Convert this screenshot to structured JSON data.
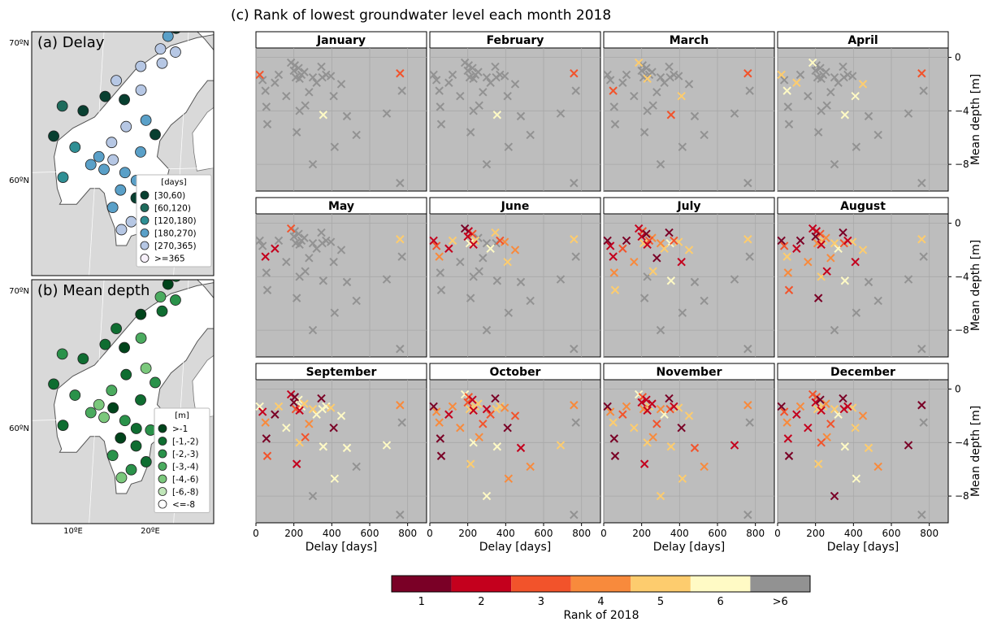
{
  "figure": {
    "title": "(c) Rank of lowest groundwater level each month 2018"
  },
  "maps": [
    {
      "title": "(a) Delay",
      "lat_labels": [
        "70ºN",
        "60ºN"
      ],
      "legend_title": "[days]",
      "legend_items": [
        {
          "label": "[30,60)",
          "color": "#083f30"
        },
        {
          "label": "[60,120)",
          "color": "#1e6b5c"
        },
        {
          "label": "[120,180)",
          "color": "#2f8f94"
        },
        {
          "label": "[180,270)",
          "color": "#5aa0c8"
        },
        {
          "label": "[270,365)",
          "color": "#b6c7e4"
        },
        {
          "label": ">=365",
          "color": "#f7f0fa"
        }
      ],
      "stations": [
        {
          "lat": 69.1,
          "lon": 18.5,
          "cls": 1
        },
        {
          "lat": 68.6,
          "lon": 17.6,
          "cls": 4
        },
        {
          "lat": 67.8,
          "lon": 16.8,
          "cls": 5
        },
        {
          "lat": 67.6,
          "lon": 18.6,
          "cls": 5
        },
        {
          "lat": 66.9,
          "lon": 17.1,
          "cls": 5
        },
        {
          "lat": 66.7,
          "lon": 14.6,
          "cls": 5
        },
        {
          "lat": 65.8,
          "lon": 11.8,
          "cls": 5
        },
        {
          "lat": 65.2,
          "lon": 14.8,
          "cls": 5
        },
        {
          "lat": 64.8,
          "lon": 10.6,
          "cls": 1
        },
        {
          "lat": 64.6,
          "lon": 12.9,
          "cls": 1
        },
        {
          "lat": 64.2,
          "lon": 5.6,
          "cls": 2
        },
        {
          "lat": 63.9,
          "lon": 8.1,
          "cls": 1
        },
        {
          "lat": 63.3,
          "lon": 15.6,
          "cls": 4
        },
        {
          "lat": 62.9,
          "lon": 13.3,
          "cls": 5
        },
        {
          "lat": 62.4,
          "lon": 16.8,
          "cls": 1
        },
        {
          "lat": 62.3,
          "lon": 4.8,
          "cls": 1
        },
        {
          "lat": 61.9,
          "lon": 11.7,
          "cls": 5
        },
        {
          "lat": 61.6,
          "lon": 7.4,
          "cls": 3
        },
        {
          "lat": 61.3,
          "lon": 15.2,
          "cls": 4
        },
        {
          "lat": 61.0,
          "lon": 10.3,
          "cls": 4
        },
        {
          "lat": 60.8,
          "lon": 12.0,
          "cls": 5
        },
        {
          "lat": 60.5,
          "lon": 9.4,
          "cls": 4
        },
        {
          "lat": 60.2,
          "lon": 11.0,
          "cls": 4
        },
        {
          "lat": 60.0,
          "lon": 13.5,
          "cls": 4
        },
        {
          "lat": 59.7,
          "lon": 6.2,
          "cls": 3
        },
        {
          "lat": 59.5,
          "lon": 14.9,
          "cls": 4
        },
        {
          "lat": 59.4,
          "lon": 16.6,
          "cls": 5
        },
        {
          "lat": 59.3,
          "lon": 18.1,
          "cls": 5
        },
        {
          "lat": 58.9,
          "lon": 13.1,
          "cls": 4
        },
        {
          "lat": 58.4,
          "lon": 15.0,
          "cls": 1
        },
        {
          "lat": 57.8,
          "lon": 12.3,
          "cls": 4
        },
        {
          "lat": 57.4,
          "lon": 16.3,
          "cls": 5
        },
        {
          "lat": 56.9,
          "lon": 14.6,
          "cls": 5
        },
        {
          "lat": 56.4,
          "lon": 13.5,
          "cls": 5
        }
      ]
    },
    {
      "title": "(b) Mean depth",
      "lat_labels": [
        "70ºN",
        "60ºN"
      ],
      "lon_labels": [
        "10ºE",
        "20ºE"
      ],
      "legend_title": "[m]",
      "legend_items": [
        {
          "label": ">-1",
          "color": "#00441b"
        },
        {
          "label": "[-1,-2)",
          "color": "#0f6d31"
        },
        {
          "label": "[-2,-3)",
          "color": "#2a924a"
        },
        {
          "label": "[-3,-4)",
          "color": "#4bab5f"
        },
        {
          "label": "[-4,-6)",
          "color": "#7bc87c"
        },
        {
          "label": "[-6,-8)",
          "color": "#c0e6b9"
        },
        {
          "label": "<=-8",
          "color": "#ffffff"
        }
      ],
      "stations": [
        {
          "lat": 69.1,
          "lon": 18.5,
          "cls": 2
        },
        {
          "lat": 68.6,
          "lon": 17.6,
          "cls": 1
        },
        {
          "lat": 67.8,
          "lon": 16.8,
          "cls": 4
        },
        {
          "lat": 67.6,
          "lon": 18.6,
          "cls": 3
        },
        {
          "lat": 66.9,
          "lon": 17.1,
          "cls": 2
        },
        {
          "lat": 66.7,
          "lon": 14.6,
          "cls": 1
        },
        {
          "lat": 65.8,
          "lon": 11.8,
          "cls": 2
        },
        {
          "lat": 65.2,
          "lon": 14.8,
          "cls": 4
        },
        {
          "lat": 64.8,
          "lon": 10.6,
          "cls": 2
        },
        {
          "lat": 64.6,
          "lon": 12.9,
          "cls": 1
        },
        {
          "lat": 64.2,
          "lon": 5.6,
          "cls": 3
        },
        {
          "lat": 63.9,
          "lon": 8.1,
          "cls": 2
        },
        {
          "lat": 63.3,
          "lon": 15.6,
          "cls": 5
        },
        {
          "lat": 62.9,
          "lon": 13.3,
          "cls": 2
        },
        {
          "lat": 62.4,
          "lon": 16.8,
          "cls": 3
        },
        {
          "lat": 62.3,
          "lon": 4.8,
          "cls": 2
        },
        {
          "lat": 61.9,
          "lon": 11.7,
          "cls": 4
        },
        {
          "lat": 61.6,
          "lon": 7.4,
          "cls": 3
        },
        {
          "lat": 61.3,
          "lon": 15.2,
          "cls": 2
        },
        {
          "lat": 61.0,
          "lon": 10.3,
          "cls": 5
        },
        {
          "lat": 60.8,
          "lon": 12.0,
          "cls": 1
        },
        {
          "lat": 60.5,
          "lon": 9.4,
          "cls": 4
        },
        {
          "lat": 60.2,
          "lon": 11.0,
          "cls": 5
        },
        {
          "lat": 60.0,
          "lon": 13.5,
          "cls": 3
        },
        {
          "lat": 59.7,
          "lon": 6.2,
          "cls": 2
        },
        {
          "lat": 59.5,
          "lon": 14.9,
          "cls": 2
        },
        {
          "lat": 59.4,
          "lon": 16.6,
          "cls": 3
        },
        {
          "lat": 59.3,
          "lon": 18.1,
          "cls": 2
        },
        {
          "lat": 58.9,
          "lon": 13.1,
          "cls": 1
        },
        {
          "lat": 58.4,
          "lon": 15.0,
          "cls": 2
        },
        {
          "lat": 57.8,
          "lon": 12.3,
          "cls": 3
        },
        {
          "lat": 57.4,
          "lon": 16.3,
          "cls": 2
        },
        {
          "lat": 56.9,
          "lon": 14.6,
          "cls": 3
        },
        {
          "lat": 56.4,
          "lon": 13.5,
          "cls": 5
        }
      ]
    }
  ],
  "chart_data": {
    "type": "scatter",
    "title": "(c) Rank of lowest groundwater level each month 2018",
    "xlabel": "Delay [days]",
    "ylabel": "Mean depth [m]",
    "xlim": [
      0,
      900
    ],
    "ylim": [
      0,
      -10
    ],
    "xticks": [
      0,
      200,
      400,
      600,
      800
    ],
    "yticks": [
      0,
      -4,
      -8
    ],
    "ytick_labels": [
      "0",
      "−4",
      "−8"
    ],
    "grid": true,
    "months": [
      "January",
      "February",
      "March",
      "April",
      "May",
      "June",
      "July",
      "August",
      "September",
      "October",
      "November",
      "December"
    ],
    "stations": [
      {
        "delay": 20,
        "depth": -1.3
      },
      {
        "delay": 35,
        "depth": -1.7
      },
      {
        "delay": 50,
        "depth": -2.5
      },
      {
        "delay": 55,
        "depth": -3.7
      },
      {
        "delay": 60,
        "depth": -5.0
      },
      {
        "delay": 100,
        "depth": -1.9
      },
      {
        "delay": 120,
        "depth": -1.3
      },
      {
        "delay": 160,
        "depth": -2.9
      },
      {
        "delay": 185,
        "depth": -0.4
      },
      {
        "delay": 200,
        "depth": -1.0
      },
      {
        "delay": 205,
        "depth": -0.6
      },
      {
        "delay": 210,
        "depth": -1.5
      },
      {
        "delay": 225,
        "depth": -0.8
      },
      {
        "delay": 230,
        "depth": -1.6
      },
      {
        "delay": 240,
        "depth": -1.3
      },
      {
        "delay": 255,
        "depth": -1.1
      },
      {
        "delay": 260,
        "depth": -3.6
      },
      {
        "delay": 230,
        "depth": -4.0
      },
      {
        "delay": 215,
        "depth": -5.6
      },
      {
        "delay": 280,
        "depth": -2.6
      },
      {
        "delay": 300,
        "depth": -1.5
      },
      {
        "delay": 320,
        "depth": -1.9
      },
      {
        "delay": 345,
        "depth": -0.7
      },
      {
        "delay": 350,
        "depth": -1.5
      },
      {
        "delay": 370,
        "depth": -1.3
      },
      {
        "delay": 395,
        "depth": -1.4
      },
      {
        "delay": 410,
        "depth": -2.9
      },
      {
        "delay": 355,
        "depth": -4.3
      },
      {
        "delay": 300,
        "depth": -8.0
      },
      {
        "delay": 415,
        "depth": -6.7
      },
      {
        "delay": 450,
        "depth": -2.0
      },
      {
        "delay": 480,
        "depth": -4.4
      },
      {
        "delay": 530,
        "depth": -5.8
      },
      {
        "delay": 690,
        "depth": -4.2
      },
      {
        "delay": 760,
        "depth": -1.2
      },
      {
        "delay": 770,
        "depth": -2.5
      },
      {
        "delay": 760,
        "depth": -9.4
      }
    ],
    "ranks_by_month": [
      [
        3,
        7,
        7,
        7,
        7,
        7,
        7,
        7,
        7,
        7,
        7,
        7,
        7,
        7,
        7,
        7,
        7,
        7,
        7,
        7,
        7,
        7,
        7,
        7,
        7,
        7,
        7,
        6,
        7,
        7,
        7,
        7,
        7,
        7,
        3,
        7,
        7
      ],
      [
        7,
        7,
        7,
        7,
        7,
        7,
        7,
        7,
        7,
        7,
        7,
        7,
        7,
        7,
        7,
        7,
        7,
        7,
        7,
        7,
        7,
        7,
        7,
        7,
        7,
        7,
        7,
        6,
        7,
        7,
        7,
        7,
        7,
        7,
        3,
        7,
        7
      ],
      [
        7,
        7,
        3,
        7,
        7,
        7,
        7,
        7,
        5,
        7,
        7,
        7,
        7,
        5,
        7,
        7,
        7,
        7,
        7,
        7,
        7,
        7,
        7,
        7,
        7,
        7,
        5,
        3,
        7,
        7,
        7,
        7,
        7,
        7,
        3,
        7,
        7
      ],
      [
        5,
        7,
        6,
        7,
        7,
        5,
        7,
        7,
        6,
        7,
        7,
        7,
        7,
        7,
        7,
        7,
        7,
        7,
        7,
        7,
        7,
        7,
        7,
        7,
        7,
        7,
        6,
        6,
        7,
        7,
        5,
        7,
        7,
        7,
        3,
        7,
        7
      ],
      [
        7,
        7,
        2,
        7,
        7,
        2,
        7,
        7,
        3,
        7,
        7,
        7,
        7,
        7,
        7,
        7,
        7,
        7,
        7,
        7,
        7,
        7,
        7,
        7,
        7,
        7,
        7,
        7,
        7,
        7,
        7,
        7,
        7,
        7,
        5,
        7,
        7
      ],
      [
        2,
        3,
        4,
        7,
        7,
        2,
        5,
        7,
        1,
        2,
        2,
        6,
        3,
        2,
        5,
        7,
        7,
        7,
        7,
        7,
        7,
        6,
        5,
        7,
        3,
        4,
        5,
        7,
        7,
        7,
        4,
        7,
        7,
        7,
        5,
        7,
        7
      ],
      [
        1,
        2,
        2,
        4,
        5,
        3,
        1,
        4,
        2,
        2,
        3,
        5,
        1,
        2,
        3,
        4,
        5,
        7,
        7,
        1,
        4,
        5,
        1,
        6,
        3,
        5,
        2,
        6,
        7,
        7,
        5,
        7,
        7,
        7,
        5,
        7,
        7
      ],
      [
        1,
        3,
        5,
        4,
        3,
        2,
        1,
        4,
        2,
        1,
        2,
        4,
        3,
        2,
        5,
        4,
        2,
        5,
        1,
        4,
        5,
        6,
        1,
        3,
        2,
        5,
        2,
        6,
        7,
        7,
        5,
        7,
        7,
        7,
        5,
        7,
        7
      ],
      [
        6,
        2,
        4,
        1,
        3,
        1,
        5,
        6,
        2,
        1,
        1,
        3,
        6,
        2,
        6,
        5,
        3,
        5,
        2,
        4,
        5,
        6,
        1,
        6,
        6,
        5,
        1,
        6,
        7,
        6,
        6,
        6,
        7,
        6,
        4,
        7,
        7
      ],
      [
        1,
        4,
        4,
        1,
        1,
        2,
        4,
        4,
        6,
        3,
        3,
        5,
        2,
        2,
        5,
        5,
        4,
        6,
        5,
        3,
        2,
        3,
        1,
        5,
        5,
        4,
        1,
        6,
        6,
        4,
        3,
        2,
        4,
        5,
        4,
        7,
        7
      ],
      [
        1,
        4,
        5,
        1,
        1,
        3,
        4,
        5,
        6,
        2,
        3,
        4,
        2,
        2,
        5,
        2,
        4,
        5,
        2,
        3,
        4,
        6,
        1,
        3,
        2,
        5,
        1,
        5,
        5,
        5,
        5,
        3,
        4,
        2,
        4,
        7,
        7
      ],
      [
        1,
        3,
        4,
        2,
        1,
        2,
        4,
        2,
        3,
        2,
        3,
        5,
        1,
        2,
        5,
        4,
        4,
        3,
        5,
        3,
        5,
        6,
        1,
        2,
        2,
        5,
        5,
        6,
        1,
        6,
        4,
        5,
        4,
        1,
        1,
        7,
        7
      ]
    ],
    "colorbar": {
      "label": "Rank of 2018",
      "ticks": [
        "1",
        "2",
        "3",
        "4",
        "5",
        "6",
        ">6"
      ],
      "colors": [
        "#7a0026",
        "#c4001d",
        "#f2532b",
        "#f88a3c",
        "#fdcc6e",
        "#fffac5",
        "#929292"
      ]
    }
  }
}
